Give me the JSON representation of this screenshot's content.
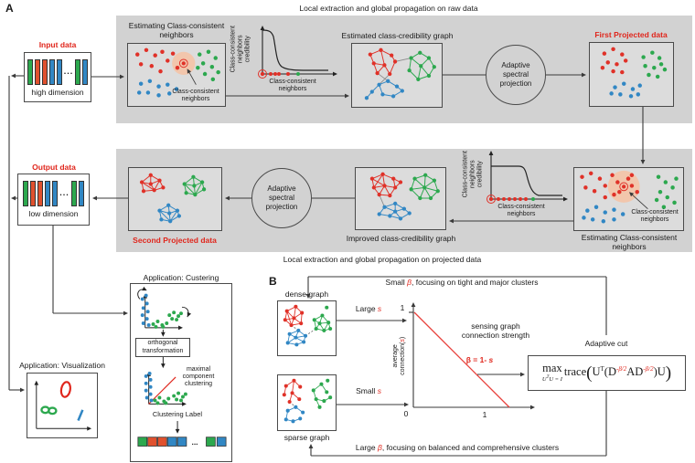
{
  "panel_a": {
    "label": "A",
    "band1_title": "Local extraction and global propagation on raw data",
    "band2_title": "Local extraction and global propagation on projected data",
    "input_box": {
      "title": "Input data",
      "caption": "high dimension",
      "ellipsis": "..."
    },
    "output_box": {
      "title": "Output data",
      "caption": "low dimension",
      "ellipsis": "..."
    },
    "estimating1": {
      "title_l1": "Estimating Class-consistent",
      "title_l2": "neighbors",
      "annotation_l1": "Class-consistent",
      "annotation_l2": "neighbors"
    },
    "credibility_plot1": {
      "ylabel_l1": "Class-consistent",
      "ylabel_l2": "neighbors",
      "ylabel_l3": "credibility",
      "xlabel_l1": "Class-consistent",
      "xlabel_l2": "neighbors"
    },
    "graph1_title": "Estimated class-credibility graph",
    "projection1": {
      "l1": "Adaptive",
      "l2": "spectral",
      "l3": "projection"
    },
    "projected1_title": "First Projected data",
    "estimating2": {
      "title_l1": "Estimating Class-consistent",
      "title_l2": "neighbors",
      "annotation_l1": "Class-consistent",
      "annotation_l2": "neighbors"
    },
    "credibility_plot2": {
      "ylabel_l1": "Class-consistent",
      "ylabel_l2": "neighbors",
      "ylabel_l3": "credibility",
      "xlabel_l1": "Class-consistent",
      "xlabel_l2": "neighbors"
    },
    "graph2_title": "Improved class-credibility graph",
    "projection2": {
      "l1": "Adaptive",
      "l2": "spectral",
      "l3": "projection"
    },
    "projected2_title": "Second Projected data",
    "clustering_app": {
      "title": "Application: Custering",
      "transform_l1": "orthogonal",
      "transform_l2": "transformation",
      "note_l1": "maximal",
      "note_l2": "component",
      "note_l3": "clustering",
      "label_caption": "Clustering Label",
      "ellipsis": "..."
    },
    "visualization_app": {
      "title": "Application: Visualization"
    }
  },
  "panel_b": {
    "label": "B",
    "dense_graph_label": "dense graph",
    "sparse_graph_label": "sparse graph",
    "large_s_pre": "Large ",
    "large_s_var": "s",
    "small_s_pre": "Small ",
    "small_s_var": "s",
    "top_note_pre": "Small ",
    "top_note_var": "β",
    "top_note_post": ", focusing on tight and major clusters",
    "bottom_note_pre": "Large ",
    "bottom_note_var": "β",
    "bottom_note_post": ", focusing on balanced and comprehensive clusters",
    "plot": {
      "ytick": "1",
      "origin_tick": "0",
      "xtick": "1",
      "ylabel_l1": "average",
      "ylabel_l2_pre": "connection(",
      "ylabel_l2_var": "s",
      "ylabel_l2_post": ")",
      "note_l1": "sensing graph",
      "note_l2": "connection strength",
      "beta_eq_pre": "β = 1- ",
      "beta_eq_var": "s"
    },
    "adaptive_cut_label": "Adaptive cut",
    "formula": {
      "max": "max",
      "constraint_u1": "U",
      "constraint_sup": "T",
      "constraint_rest": "U = I",
      "trace": "trace",
      "u1": "U",
      "u1_sup": "T",
      "d1": "D",
      "exp1": "-β/2",
      "a": "A",
      "d2": "D",
      "exp2": "-β/2",
      "u2": "U",
      "open": "(",
      "close": ")"
    }
  },
  "colors": {
    "red": "#e0261c",
    "green": "#2ca84e",
    "blue": "#3187c4",
    "band_gray": "#d2d2d2",
    "inner_gray": "#dcdcdc",
    "halo": "#f2c6ac"
  }
}
